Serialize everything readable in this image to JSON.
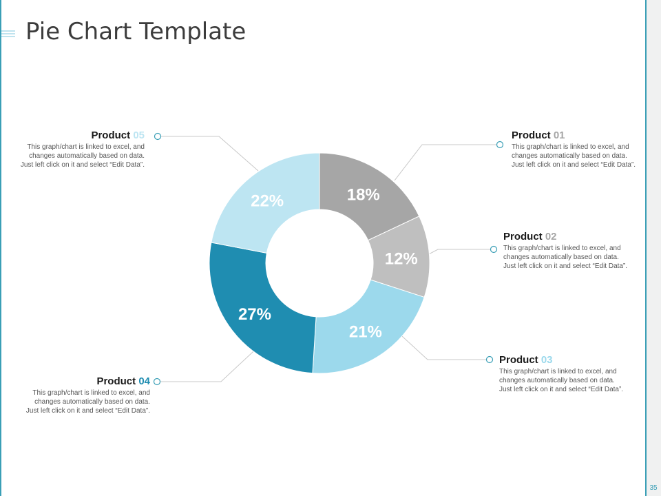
{
  "slide": {
    "title": "Pie Chart Template",
    "page_number": "35"
  },
  "colors": {
    "accent": "#3a9fb6",
    "product_01": "#a6a6a6",
    "product_02": "#bfbfbf",
    "product_03": "#9cd9ec",
    "product_04": "#1f8db1",
    "product_05": "#bde5f2"
  },
  "chart_data": {
    "type": "pie",
    "style": "donut",
    "slices": [
      {
        "label": "Product 01",
        "value": 18,
        "display": "18%",
        "color": "#a6a6a6"
      },
      {
        "label": "Product 02",
        "value": 12,
        "display": "12%",
        "color": "#bfbfbf"
      },
      {
        "label": "Product 03",
        "value": 21,
        "display": "21%",
        "color": "#9cd9ec"
      },
      {
        "label": "Product 04",
        "value": 27,
        "display": "27%",
        "color": "#1f8db1"
      },
      {
        "label": "Product 05",
        "value": 22,
        "display": "22%",
        "color": "#bde5f2"
      }
    ]
  },
  "callouts": {
    "p01": {
      "name": "Product",
      "num": "01",
      "num_color": "#a6a6a6",
      "lines": [
        "This graph/chart is linked to excel, and",
        "changes automatically based on data.",
        "Just left click on it and select “Edit Data”."
      ]
    },
    "p02": {
      "name": "Product",
      "num": "02",
      "num_color": "#a6a6a6",
      "lines": [
        "This graph/chart is linked to excel, and",
        "changes automatically based on data.",
        "Just left click on it and select “Edit Data”."
      ]
    },
    "p03": {
      "name": "Product",
      "num": "03",
      "num_color": "#9cd9ec",
      "lines": [
        "This graph/chart is linked to excel, and",
        "changes automatically based on data.",
        "Just left click on it and select “Edit Data”."
      ]
    },
    "p04": {
      "name": "Product",
      "num": "04",
      "num_color": "#1f8db1",
      "lines": [
        "This graph/chart is linked to excel, and",
        "changes automatically based on data.",
        "Just left click on it and select “Edit Data”."
      ]
    },
    "p05": {
      "name": "Product",
      "num": "05",
      "num_color": "#bde5f2",
      "lines": [
        "This graph/chart is linked to excel, and",
        "changes automatically based on data.",
        "Just left click on it and select “Edit Data”."
      ]
    }
  }
}
